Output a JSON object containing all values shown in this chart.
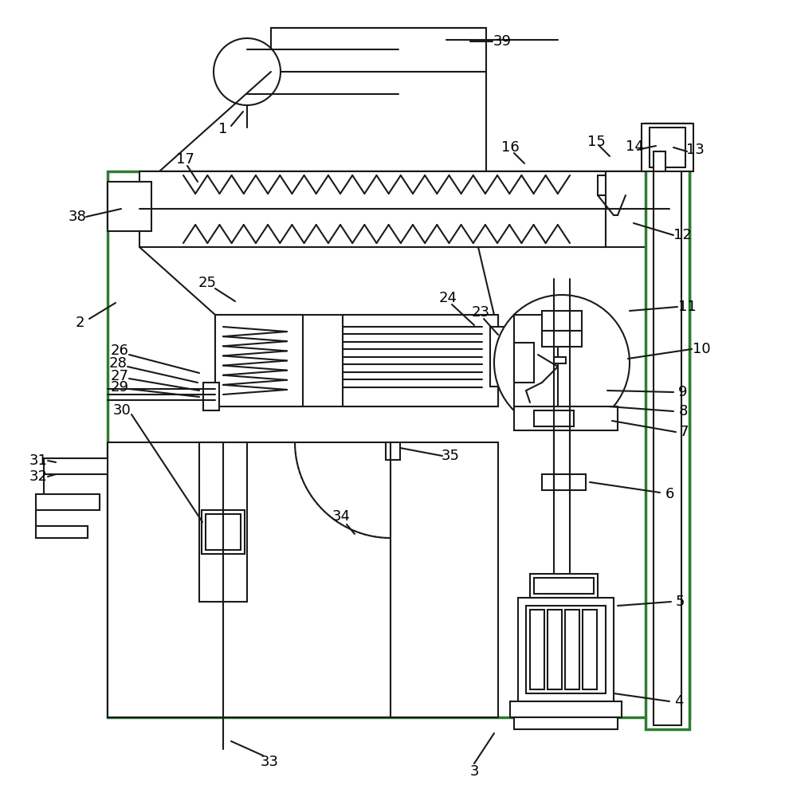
{
  "bg_color": "#ffffff",
  "line_color": "#1a1a1a",
  "green_color": "#2e7d32",
  "lw": 1.5,
  "tlw": 2.5,
  "slw": 1.0
}
